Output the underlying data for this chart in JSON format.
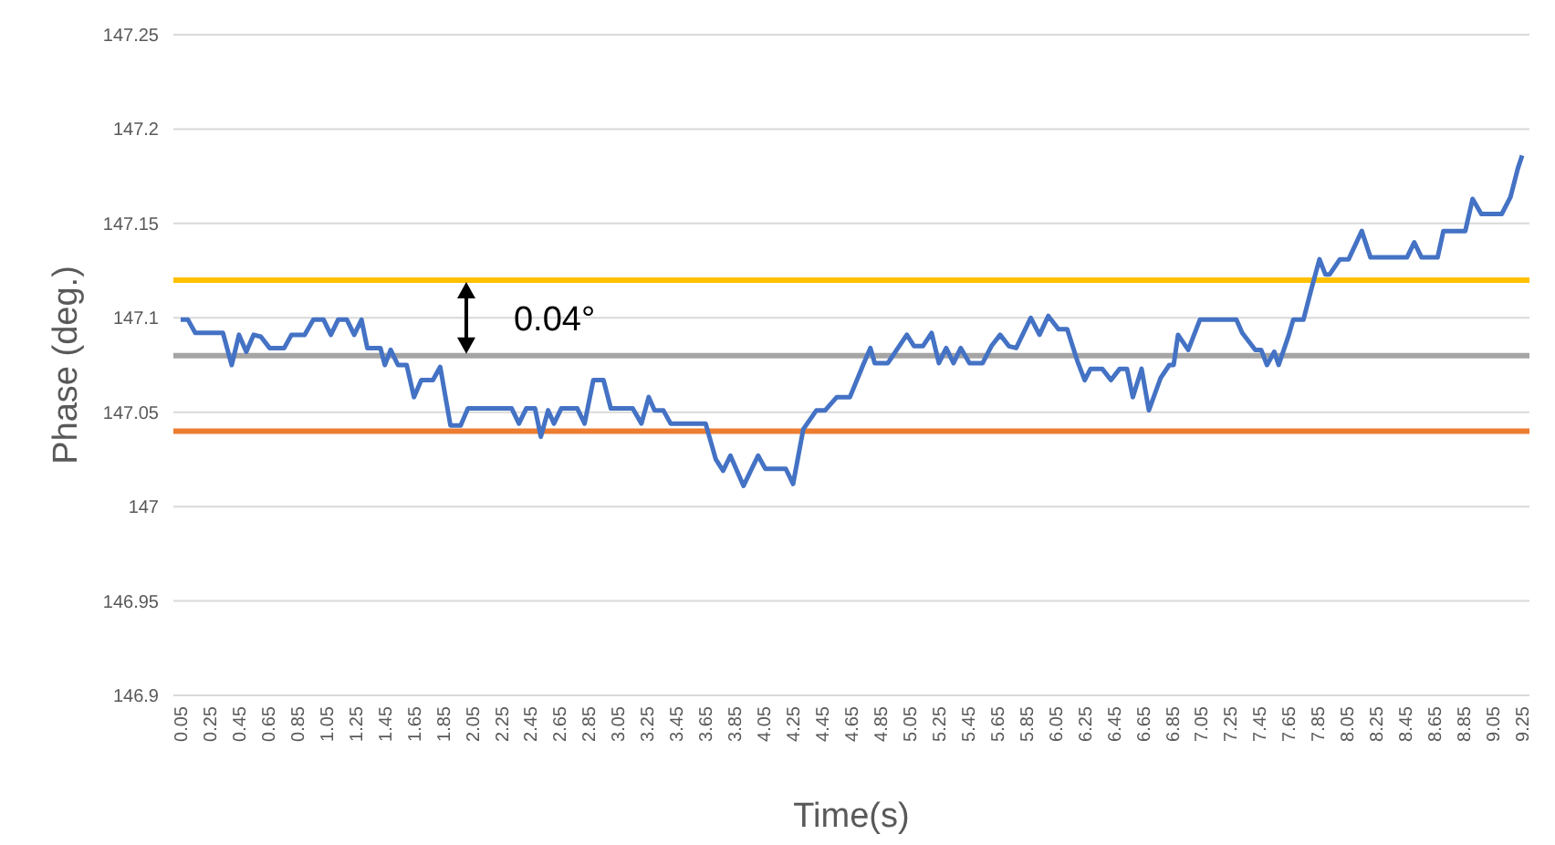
{
  "chart_data": {
    "type": "line",
    "xlabel": "Time(s)",
    "ylabel": "Phase (deg.)",
    "xlim": [
      0.0,
      9.3
    ],
    "ylim": [
      146.9,
      147.25
    ],
    "xticks": [
      0.05,
      0.25,
      0.45,
      0.65,
      0.85,
      1.05,
      1.25,
      1.45,
      1.65,
      1.85,
      2.05,
      2.25,
      2.45,
      2.65,
      2.85,
      3.05,
      3.25,
      3.45,
      3.65,
      3.85,
      4.05,
      4.25,
      4.45,
      4.65,
      4.85,
      5.05,
      5.25,
      5.45,
      5.65,
      5.85,
      6.05,
      6.25,
      6.45,
      6.65,
      6.85,
      7.05,
      7.25,
      7.45,
      7.65,
      7.85,
      8.05,
      8.25,
      8.45,
      8.65,
      8.85,
      9.05,
      9.25
    ],
    "yticks": [
      146.9,
      146.95,
      147,
      147.05,
      147.1,
      147.15,
      147.2,
      147.25
    ],
    "grid": "y",
    "marker": "none",
    "line_style": "solid",
    "x": [
      0.05,
      0.1,
      0.15,
      0.34,
      0.4,
      0.45,
      0.5,
      0.55,
      0.6,
      0.66,
      0.76,
      0.81,
      0.9,
      0.96,
      1.03,
      1.08,
      1.13,
      1.19,
      1.24,
      1.29,
      1.33,
      1.42,
      1.45,
      1.49,
      1.54,
      1.6,
      1.65,
      1.7,
      1.78,
      1.83,
      1.9,
      1.97,
      2.02,
      2.32,
      2.37,
      2.42,
      2.48,
      2.52,
      2.57,
      2.61,
      2.66,
      2.77,
      2.82,
      2.88,
      2.95,
      3.0,
      3.15,
      3.21,
      3.26,
      3.3,
      3.36,
      3.41,
      3.65,
      3.72,
      3.77,
      3.82,
      3.91,
      4.01,
      4.06,
      4.2,
      4.25,
      4.32,
      4.41,
      4.47,
      4.55,
      4.64,
      4.73,
      4.78,
      4.81,
      4.9,
      5.03,
      5.08,
      5.14,
      5.2,
      5.25,
      5.3,
      5.35,
      5.4,
      5.46,
      5.55,
      5.61,
      5.67,
      5.73,
      5.78,
      5.88,
      5.94,
      6.0,
      6.07,
      6.13,
      6.2,
      6.25,
      6.29,
      6.37,
      6.43,
      6.49,
      6.54,
      6.58,
      6.64,
      6.69,
      6.77,
      6.83,
      6.86,
      6.89,
      6.96,
      7.04,
      7.29,
      7.33,
      7.42,
      7.46,
      7.5,
      7.55,
      7.58,
      7.65,
      7.68,
      7.75,
      7.8,
      7.86,
      7.9,
      7.93,
      8.0,
      8.06,
      8.15,
      8.21,
      8.46,
      8.51,
      8.56,
      8.67,
      8.71,
      8.86,
      8.91,
      8.97,
      9.11,
      9.17,
      9.22,
      9.25
    ],
    "series": [
      {
        "color": "#4472c4",
        "values": [
          147.099,
          147.099,
          147.092,
          147.092,
          147.075,
          147.091,
          147.082,
          147.091,
          147.09,
          147.084,
          147.084,
          147.091,
          147.091,
          147.099,
          147.099,
          147.091,
          147.099,
          147.099,
          147.091,
          147.099,
          147.084,
          147.084,
          147.075,
          147.083,
          147.075,
          147.075,
          147.058,
          147.067,
          147.067,
          147.074,
          147.043,
          147.043,
          147.052,
          147.052,
          147.044,
          147.052,
          147.052,
          147.037,
          147.051,
          147.044,
          147.052,
          147.052,
          147.044,
          147.067,
          147.067,
          147.052,
          147.052,
          147.044,
          147.058,
          147.051,
          147.051,
          147.044,
          147.044,
          147.025,
          147.019,
          147.027,
          147.011,
          147.027,
          147.02,
          147.02,
          147.012,
          147.041,
          147.051,
          147.051,
          147.058,
          147.058,
          147.075,
          147.084,
          147.076,
          147.076,
          147.091,
          147.085,
          147.085,
          147.092,
          147.076,
          147.084,
          147.076,
          147.084,
          147.076,
          147.076,
          147.085,
          147.091,
          147.085,
          147.084,
          147.1,
          147.091,
          147.101,
          147.094,
          147.094,
          147.077,
          147.067,
          147.073,
          147.073,
          147.067,
          147.073,
          147.073,
          147.058,
          147.073,
          147.051,
          147.068,
          147.075,
          147.075,
          147.091,
          147.083,
          147.099,
          147.099,
          147.092,
          147.083,
          147.083,
          147.075,
          147.082,
          147.075,
          147.091,
          147.099,
          147.099,
          147.114,
          147.131,
          147.123,
          147.123,
          147.131,
          147.131,
          147.146,
          147.132,
          147.132,
          147.14,
          147.132,
          147.132,
          147.146,
          147.146,
          147.163,
          147.155,
          147.155,
          147.164,
          147.179,
          147.186
        ]
      }
    ],
    "ref_lines": [
      {
        "axis": "y",
        "value": 147.12,
        "color": "#ffc000"
      },
      {
        "axis": "y",
        "value": 147.08,
        "color": "#a5a5a5"
      },
      {
        "axis": "y",
        "value": 147.04,
        "color": "#ed7d31"
      }
    ],
    "annotations": [
      "0.04°"
    ]
  }
}
